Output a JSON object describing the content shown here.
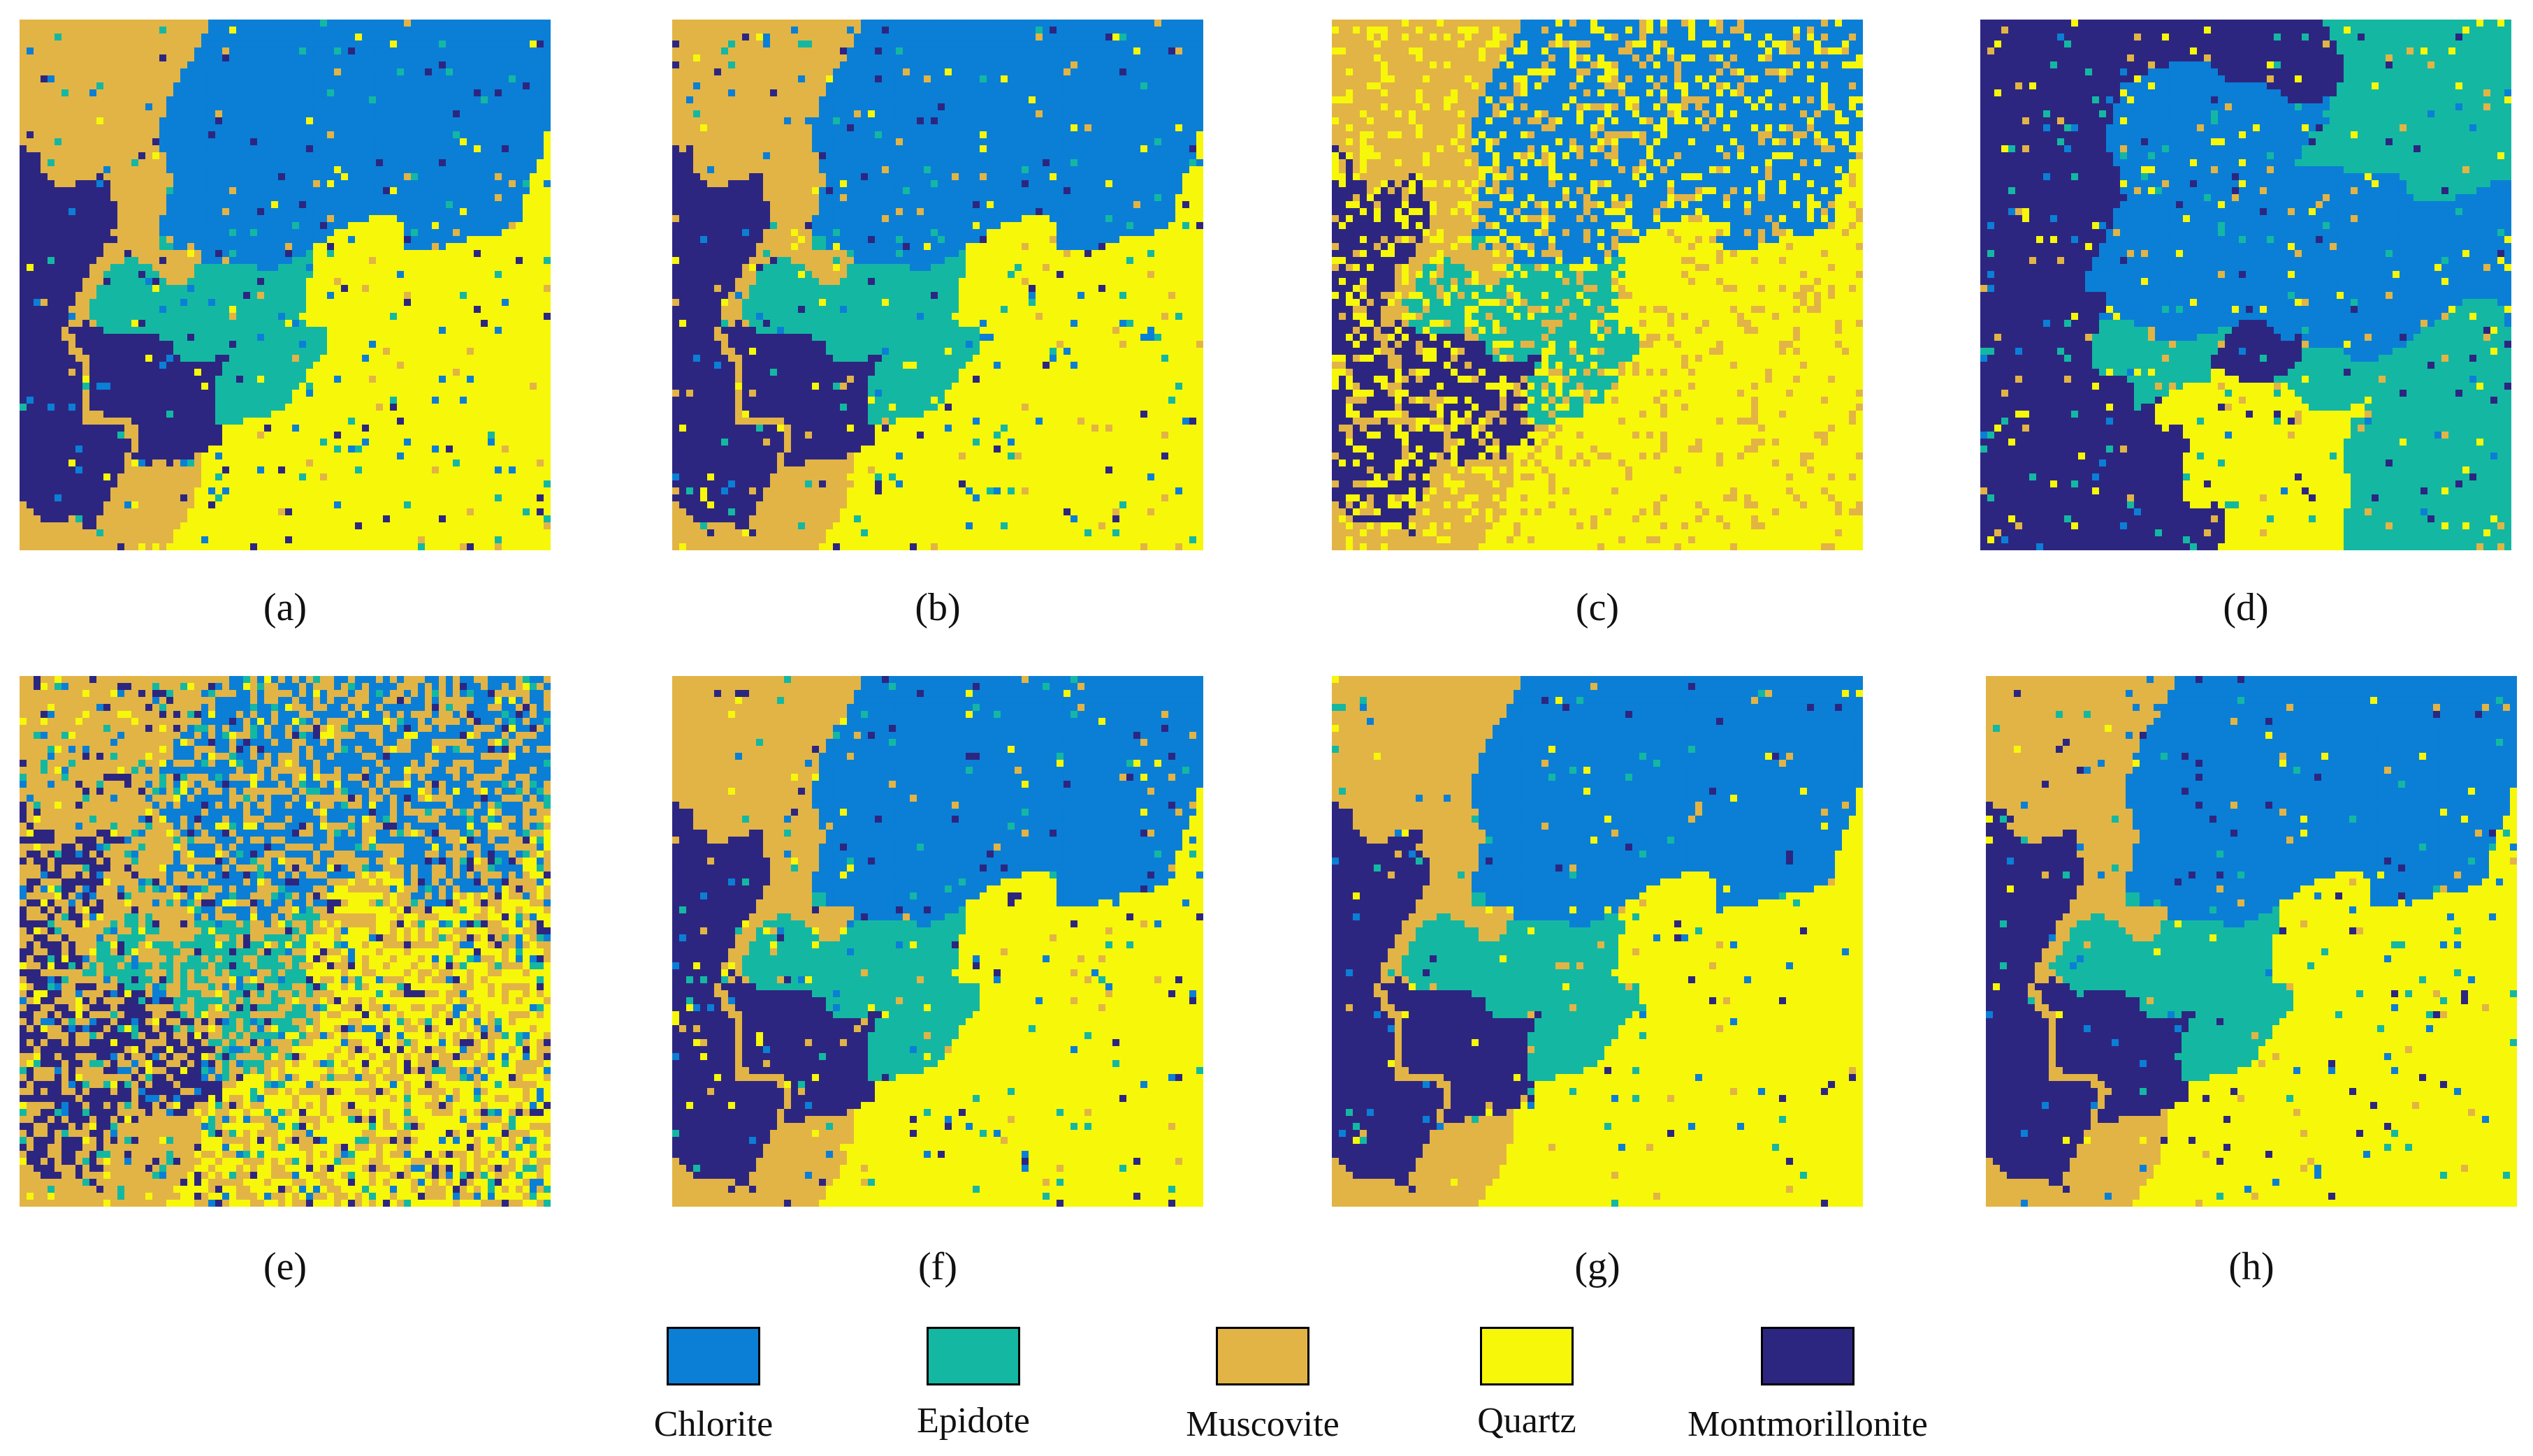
{
  "figure": {
    "palette": {
      "chlorite": "#0b7fd6",
      "epidote": "#14b8a2",
      "muscovite": "#e2b445",
      "quartz": "#f7f70a",
      "montmorillonite": "#2d2681"
    },
    "panels": [
      {
        "caption": "(a)"
      },
      {
        "caption": "(b)"
      },
      {
        "caption": "(c)"
      },
      {
        "caption": "(d)"
      },
      {
        "caption": "(e)"
      },
      {
        "caption": "(f)"
      },
      {
        "caption": "(g)"
      },
      {
        "caption": "(h)"
      }
    ],
    "legend": {
      "items": [
        {
          "label": "Chlorite",
          "color": "#0b7fd6"
        },
        {
          "label": "Epidote",
          "color": "#14b8a2"
        },
        {
          "label": "Muscovite",
          "color": "#e2b445"
        },
        {
          "label": "Quartz",
          "color": "#f7f70a"
        },
        {
          "label": "Montmorillonite",
          "color": "#2d2681"
        }
      ]
    }
  }
}
